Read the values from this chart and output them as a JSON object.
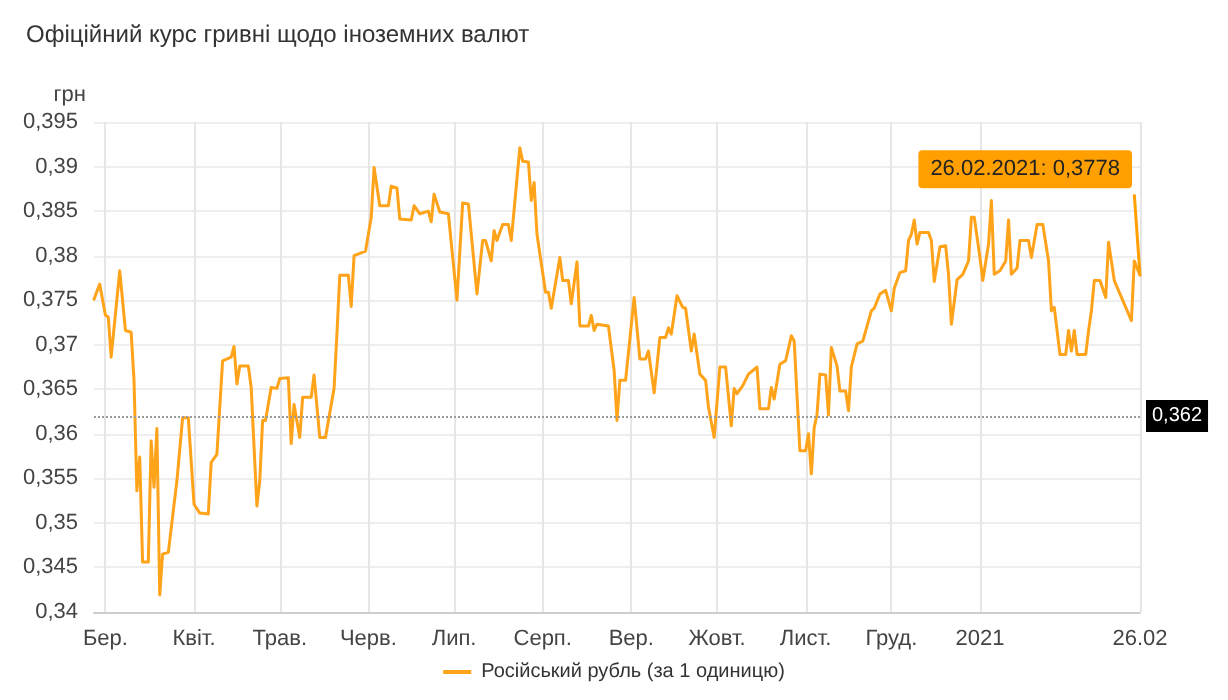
{
  "chart_data": {
    "type": "line",
    "title": "Офіційний курс гривні щодо іноземних валют",
    "ylabel": "грн",
    "x": [
      "2020-02-26",
      "2020-02-28",
      "2020-03-01",
      "2020-03-02",
      "2020-03-03",
      "2020-03-06",
      "2020-03-08",
      "2020-03-10",
      "2020-03-11",
      "2020-03-12",
      "2020-03-13",
      "2020-03-14",
      "2020-03-16",
      "2020-03-17",
      "2020-03-18",
      "2020-03-19",
      "2020-03-20",
      "2020-03-21",
      "2020-03-23",
      "2020-03-26",
      "2020-03-28",
      "2020-03-30",
      "2020-04-01",
      "2020-04-03",
      "2020-04-06",
      "2020-04-07",
      "2020-04-09",
      "2020-04-11",
      "2020-04-14",
      "2020-04-15",
      "2020-04-16",
      "2020-04-17",
      "2020-04-20",
      "2020-04-21",
      "2020-04-23",
      "2020-04-24",
      "2020-04-25",
      "2020-04-26",
      "2020-04-28",
      "2020-04-30",
      "2020-05-01",
      "2020-05-04",
      "2020-05-05",
      "2020-05-06",
      "2020-05-08",
      "2020-05-09",
      "2020-05-12",
      "2020-05-13",
      "2020-05-15",
      "2020-05-17",
      "2020-05-20",
      "2020-05-21",
      "2020-05-22",
      "2020-05-25",
      "2020-05-26",
      "2020-05-27",
      "2020-05-31",
      "2020-06-02",
      "2020-06-03",
      "2020-06-05",
      "2020-06-08",
      "2020-06-09",
      "2020-06-11",
      "2020-06-12",
      "2020-06-16",
      "2020-06-17",
      "2020-06-19",
      "2020-06-22",
      "2020-06-23",
      "2020-06-24",
      "2020-06-26",
      "2020-06-29",
      "2020-07-02",
      "2020-07-04",
      "2020-07-06",
      "2020-07-09",
      "2020-07-11",
      "2020-07-12",
      "2020-07-14",
      "2020-07-15",
      "2020-07-16",
      "2020-07-18",
      "2020-07-20",
      "2020-07-21",
      "2020-07-24",
      "2020-07-25",
      "2020-07-27",
      "2020-07-28",
      "2020-07-29",
      "2020-07-30",
      "2020-08-02",
      "2020-08-03",
      "2020-08-04",
      "2020-08-07",
      "2020-08-08",
      "2020-08-10",
      "2020-08-11",
      "2020-08-13",
      "2020-08-14",
      "2020-08-17",
      "2020-08-18",
      "2020-08-19",
      "2020-08-20",
      "2020-08-24",
      "2020-08-26",
      "2020-08-27",
      "2020-08-28",
      "2020-08-30",
      "2020-09-02",
      "2020-09-04",
      "2020-09-06",
      "2020-09-07",
      "2020-09-09",
      "2020-09-11",
      "2020-09-13",
      "2020-09-14",
      "2020-09-15",
      "2020-09-17",
      "2020-09-19",
      "2020-09-20",
      "2020-09-22",
      "2020-09-23",
      "2020-09-25",
      "2020-09-27",
      "2020-09-28",
      "2020-09-30",
      "2020-10-02",
      "2020-10-04",
      "2020-10-06",
      "2020-10-07",
      "2020-10-08",
      "2020-10-10",
      "2020-10-12",
      "2020-10-15",
      "2020-10-16",
      "2020-10-19",
      "2020-10-20",
      "2020-10-21",
      "2020-10-23",
      "2020-10-25",
      "2020-10-27",
      "2020-10-28",
      "2020-10-30",
      "2020-11-01",
      "2020-11-02",
      "2020-11-03",
      "2020-11-04",
      "2020-11-05",
      "2020-11-06",
      "2020-11-08",
      "2020-11-09",
      "2020-11-10",
      "2020-11-12",
      "2020-11-13",
      "2020-11-15",
      "2020-11-16",
      "2020-11-17",
      "2020-11-19",
      "2020-11-21",
      "2020-11-24",
      "2020-11-25",
      "2020-11-27",
      "2020-11-29",
      "2020-12-01",
      "2020-12-02",
      "2020-12-04",
      "2020-12-06",
      "2020-12-07",
      "2020-12-08",
      "2020-12-09",
      "2020-12-10",
      "2020-12-11",
      "2020-12-14",
      "2020-12-15",
      "2020-12-16",
      "2020-12-18",
      "2020-12-20",
      "2020-12-21",
      "2020-12-22",
      "2020-12-24",
      "2020-12-26",
      "2020-12-28",
      "2020-12-29",
      "2020-12-30",
      "2021-01-01",
      "2021-01-02",
      "2021-01-04",
      "2021-01-05",
      "2021-01-06",
      "2021-01-08",
      "2021-01-10",
      "2021-01-11",
      "2021-01-12",
      "2021-01-14",
      "2021-01-15",
      "2021-01-18",
      "2021-01-19",
      "2021-01-21",
      "2021-01-23",
      "2021-01-25",
      "2021-01-26",
      "2021-01-27",
      "2021-01-29",
      "2021-01-31",
      "2021-02-01",
      "2021-02-02",
      "2021-02-03",
      "2021-02-04",
      "2021-02-07",
      "2021-02-08",
      "2021-02-09",
      "2021-02-10",
      "2021-02-12",
      "2021-02-14",
      "2021-02-15",
      "2021-02-17",
      "2021-02-23",
      "2021-02-24",
      "2021-02-26"
    ],
    "series": [
      {
        "name": "Російський рубль (за 1 одиницю)",
        "color": "#ffa31a",
        "values": [
          0.3751,
          0.3768,
          0.3733,
          0.3731,
          0.3686,
          0.3783,
          0.3716,
          0.3714,
          0.366,
          0.3536,
          0.3574,
          0.3456,
          0.3456,
          0.3592,
          0.354,
          0.3606,
          0.3419,
          0.3465,
          0.3467,
          0.3547,
          0.3618,
          0.3618,
          0.3521,
          0.3511,
          0.351,
          0.3568,
          0.3577,
          0.3682,
          0.3686,
          0.3698,
          0.3656,
          0.3676,
          0.3676,
          0.3652,
          0.3519,
          0.3547,
          0.3615,
          0.3615,
          0.3652,
          0.3651,
          0.3662,
          0.3663,
          0.3589,
          0.3633,
          0.3596,
          0.3641,
          0.3641,
          0.3666,
          0.3596,
          0.3596,
          0.3651,
          0.3712,
          0.3778,
          0.3778,
          0.3743,
          0.38,
          0.3805,
          0.3843,
          0.3899,
          0.3856,
          0.3856,
          0.3878,
          0.3876,
          0.3841,
          0.384,
          0.3856,
          0.3847,
          0.385,
          0.3838,
          0.3869,
          0.3849,
          0.3847,
          0.375,
          0.3859,
          0.3858,
          0.3757,
          0.3817,
          0.3817,
          0.3794,
          0.3828,
          0.3817,
          0.3835,
          0.3835,
          0.3817,
          0.3921,
          0.3906,
          0.3905,
          0.3862,
          0.3882,
          0.3824,
          0.3759,
          0.3759,
          0.3741,
          0.3798,
          0.3772,
          0.3772,
          0.3746,
          0.3793,
          0.3721,
          0.3721,
          0.3733,
          0.3716,
          0.3723,
          0.3721,
          0.3671,
          0.3615,
          0.366,
          0.366,
          0.3753,
          0.3684,
          0.3684,
          0.3693,
          0.3646,
          0.3708,
          0.3708,
          0.3719,
          0.3712,
          0.3755,
          0.3742,
          0.3741,
          0.3693,
          0.3712,
          0.3667,
          0.366,
          0.363,
          0.3596,
          0.3675,
          0.3675,
          0.3609,
          0.3651,
          0.3645,
          0.3654,
          0.3667,
          0.3675,
          0.3628,
          0.3628,
          0.3652,
          0.3639,
          0.3678,
          0.3682,
          0.371,
          0.3704,
          0.3581,
          0.3581,
          0.36,
          0.3555,
          0.3607,
          0.3622,
          0.3667,
          0.3666,
          0.3621,
          0.3697,
          0.3676,
          0.3648,
          0.3648,
          0.3626,
          0.3675,
          0.3701,
          0.3704,
          0.3738,
          0.3741,
          0.3757,
          0.3761,
          0.3738,
          0.3763,
          0.3781,
          0.3783,
          0.3817,
          0.3824,
          0.384,
          0.3813,
          0.3826,
          0.3826,
          0.3817,
          0.3771,
          0.381,
          0.3811,
          0.3779,
          0.3723,
          0.3773,
          0.3779,
          0.3794,
          0.3843,
          0.3843,
          0.3798,
          0.3772,
          0.3813,
          0.3862,
          0.3779,
          0.3783,
          0.3794,
          0.384,
          0.3779,
          0.3786,
          0.3817,
          0.3817,
          0.3798,
          0.3835,
          0.3835,
          0.3794,
          0.3738,
          0.3742,
          0.3689,
          0.3689,
          0.3716,
          0.3693,
          0.3716,
          0.3689,
          0.3689,
          0.3716,
          0.3738,
          0.3772,
          0.3772,
          0.3753,
          0.3815,
          0.3772,
          0.3727,
          0.3794,
          0.3778
        ]
      }
    ],
    "xlim": [
      "2020-02-26",
      "2021-02-26"
    ],
    "xticks": [
      {
        "value": "2020-03-01",
        "label": "Бер."
      },
      {
        "value": "2020-04-01",
        "label": "Квіт."
      },
      {
        "value": "2020-05-01",
        "label": "Трав."
      },
      {
        "value": "2020-06-01",
        "label": "Черв."
      },
      {
        "value": "2020-07-01",
        "label": "Лип."
      },
      {
        "value": "2020-08-01",
        "label": "Серп."
      },
      {
        "value": "2020-09-01",
        "label": "Вер."
      },
      {
        "value": "2020-10-01",
        "label": "Жовт."
      },
      {
        "value": "2020-11-01",
        "label": "Лист."
      },
      {
        "value": "2020-12-01",
        "label": "Груд."
      },
      {
        "value": "2021-01-01",
        "label": "2021"
      },
      {
        "value": "2021-02-26",
        "label": "26.02"
      }
    ],
    "ylim": [
      0.34,
      0.395
    ],
    "yticks": [
      {
        "value": 0.34,
        "label": "0,34"
      },
      {
        "value": 0.345,
        "label": "0,345"
      },
      {
        "value": 0.35,
        "label": "0,35"
      },
      {
        "value": 0.355,
        "label": "0,355"
      },
      {
        "value": 0.36,
        "label": "0,36"
      },
      {
        "value": 0.365,
        "label": "0,365"
      },
      {
        "value": 0.37,
        "label": "0,37"
      },
      {
        "value": 0.375,
        "label": "0,375"
      },
      {
        "value": 0.38,
        "label": "0,38"
      },
      {
        "value": 0.385,
        "label": "0,385"
      },
      {
        "value": 0.39,
        "label": "0,39"
      },
      {
        "value": 0.395,
        "label": "0,395"
      }
    ],
    "ref_lines": [
      {
        "axis": "y",
        "value": 0.362,
        "label": "0,362",
        "color": "#999999",
        "line_style": "dotted"
      }
    ],
    "annotations": [
      {
        "text": "26.02.2021: 0,3778",
        "x": "2021-02-26",
        "y": 0.3778
      }
    ],
    "grid": true,
    "legend": "bottom",
    "marker": "none",
    "line_style": "solid"
  }
}
